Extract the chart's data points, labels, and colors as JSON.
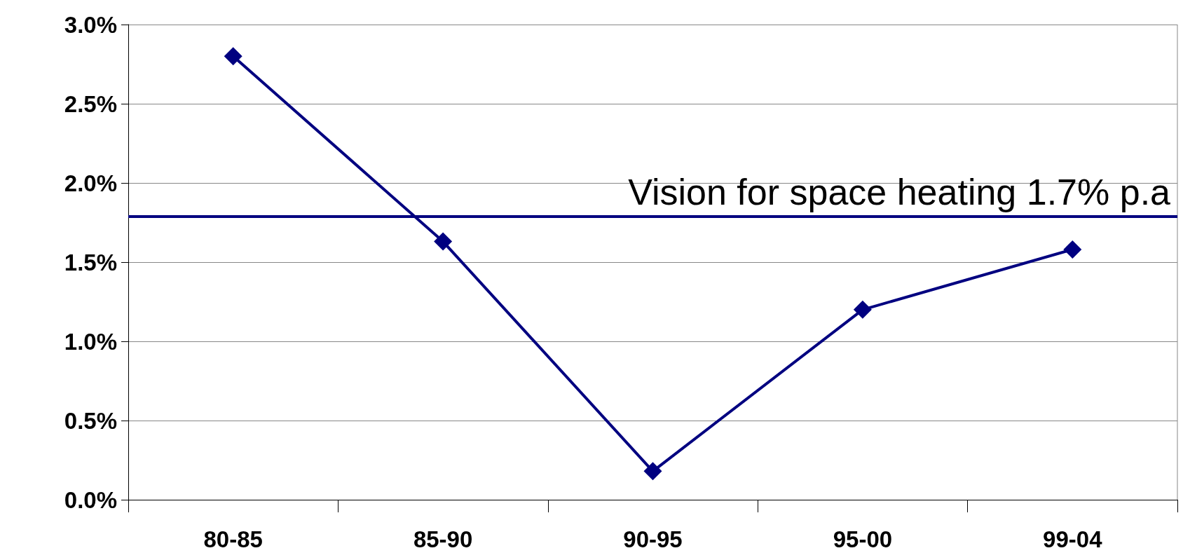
{
  "chart_data": {
    "type": "line",
    "categories": [
      "80-85",
      "85-90",
      "90-95",
      "95-00",
      "99-04"
    ],
    "series": [
      {
        "color": "#000080",
        "values": [
          2.8,
          1.63,
          0.18,
          1.2,
          1.58
        ]
      }
    ],
    "ylim": [
      0,
      3
    ],
    "yticks": [
      {
        "value": 0,
        "label": "0.0%"
      },
      {
        "value": 0.5,
        "label": "0.5%"
      },
      {
        "value": 1,
        "label": "1.0%"
      },
      {
        "value": 1.5,
        "label": "1.5%"
      },
      {
        "value": 2,
        "label": "2.0%"
      },
      {
        "value": 2.5,
        "label": "2.5%"
      },
      {
        "value": 3,
        "label": "3.0%"
      }
    ],
    "ref_lines": [
      {
        "axis": "y",
        "value": 1.79,
        "label": "Vision for space heating 1.7% p.a",
        "color": "#000080",
        "line_style": "solid"
      }
    ],
    "grid": "y",
    "marker": "diamond",
    "line_style": "solid"
  }
}
